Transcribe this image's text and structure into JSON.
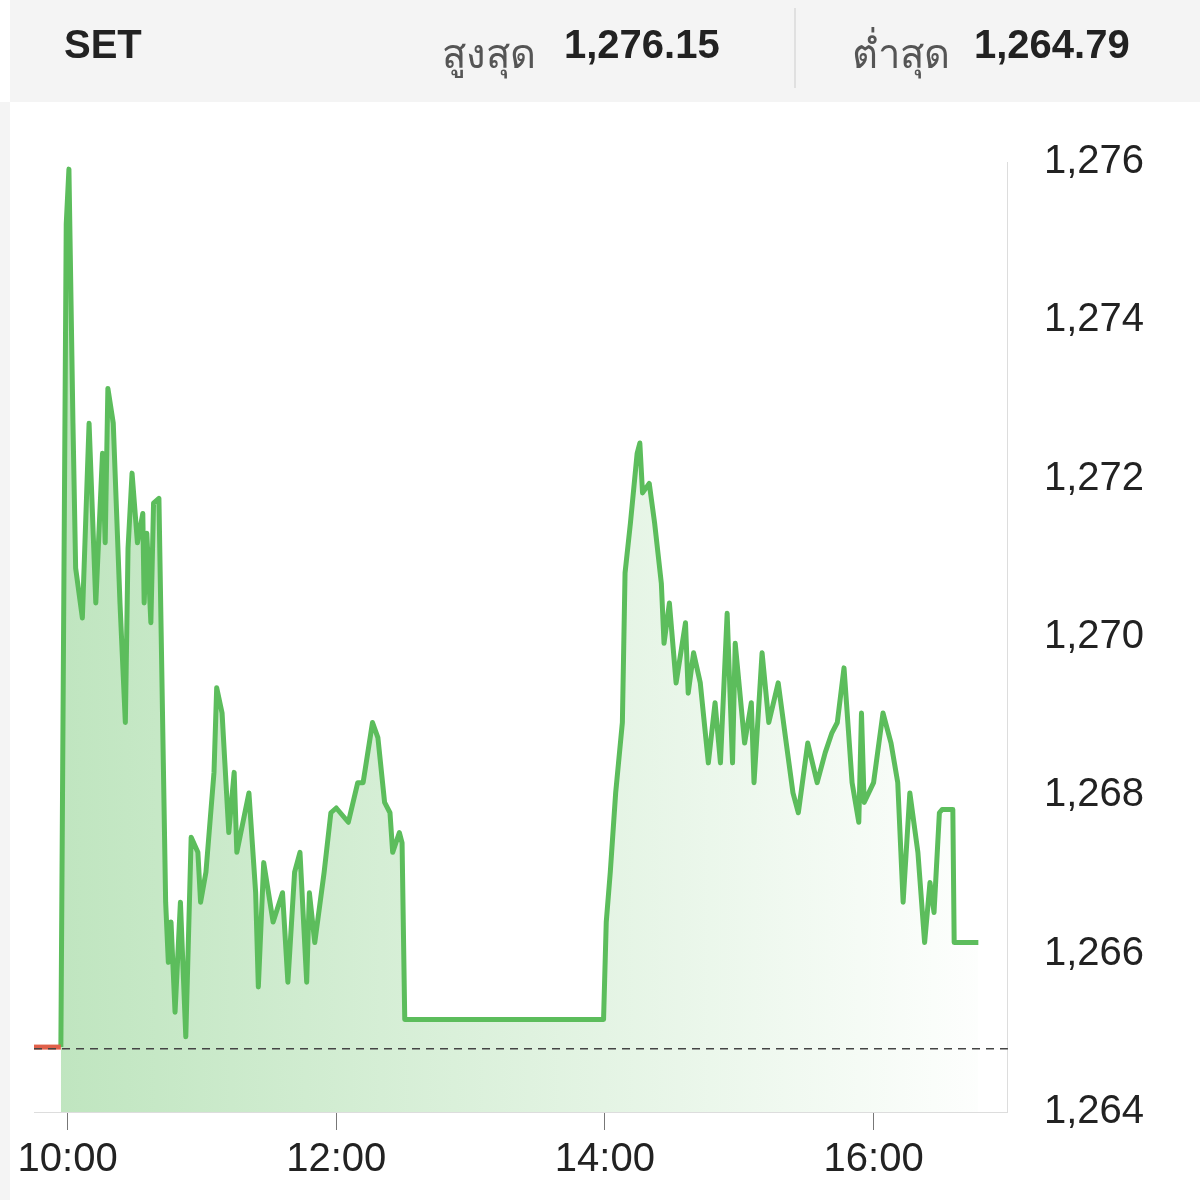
{
  "chart_data": {
    "type": "area",
    "title": "SET",
    "annotations": [
      "สูงสุด",
      "1,276.15",
      "ต่ำสุด",
      "1,264.79"
    ],
    "xlim": [
      9.75,
      17.0
    ],
    "xticks": [
      {
        "value": 10,
        "label": "10:00"
      },
      {
        "value": 12,
        "label": "12:00"
      },
      {
        "value": 14,
        "label": "14:00"
      },
      {
        "value": 16,
        "label": "16:00"
      }
    ],
    "ylim": [
      1264,
      1276
    ],
    "yticks": [
      {
        "value": 1264,
        "label": "1,264"
      },
      {
        "value": 1266,
        "label": "1,266"
      },
      {
        "value": 1268,
        "label": "1,268"
      },
      {
        "value": 1270,
        "label": "1,270"
      },
      {
        "value": 1272,
        "label": "1,272"
      },
      {
        "value": 1274,
        "label": "1,274"
      },
      {
        "value": 1276,
        "label": "1,276"
      }
    ],
    "grid": false,
    "legend": false,
    "marker": "none",
    "ref_lines": [
      {
        "axis": "y",
        "value": 1264.8,
        "color": "#444444",
        "line_style": "dashed"
      }
    ],
    "series": [
      {
        "type": "line",
        "color": "#e0604a",
        "x": [
          9.75,
          9.95
        ],
        "values": [
          1264.82,
          1264.82
        ]
      },
      {
        "color": "#5cbd5c",
        "x": [
          9.95,
          9.99,
          10.01,
          10.04,
          10.06,
          10.11,
          10.16,
          10.21,
          10.26,
          10.28,
          10.3,
          10.34,
          10.39,
          10.43,
          10.45,
          10.48,
          10.52,
          10.56,
          10.57,
          10.59,
          10.62,
          10.64,
          10.68,
          10.73,
          10.75,
          10.77,
          10.8,
          10.84,
          10.88,
          10.92,
          10.97,
          10.99,
          11.03,
          11.09,
          11.11,
          11.15,
          11.2,
          11.24,
          11.26,
          11.35,
          11.4,
          11.42,
          11.46,
          11.53,
          11.6,
          11.64,
          11.69,
          11.73,
          11.78,
          11.8,
          11.84,
          11.91,
          11.96,
          12.0,
          12.09,
          12.16,
          12.2,
          12.27,
          12.31,
          12.36,
          12.4,
          12.42,
          12.47,
          12.49,
          12.51,
          13.99,
          14.01,
          14.04,
          14.08,
          14.13,
          14.15,
          14.19,
          14.24,
          14.26,
          14.28,
          14.33,
          14.37,
          14.42,
          14.44,
          14.48,
          14.53,
          14.6,
          14.62,
          14.66,
          14.71,
          14.77,
          14.82,
          14.86,
          14.91,
          14.95,
          14.97,
          15.04,
          15.09,
          15.11,
          15.17,
          15.22,
          15.29,
          15.35,
          15.4,
          15.44,
          15.51,
          15.58,
          15.64,
          15.69,
          15.73,
          15.78,
          15.84,
          15.89,
          15.91,
          15.93,
          16.0,
          16.07,
          16.13,
          16.18,
          16.22,
          16.27,
          16.33,
          16.38,
          16.42,
          16.45,
          16.49,
          16.51,
          16.59,
          16.6,
          16.78
        ],
        "values": [
          1264.82,
          1275.22,
          1275.91,
          1272.7,
          1270.87,
          1270.24,
          1272.7,
          1270.43,
          1272.32,
          1271.19,
          1273.14,
          1272.7,
          1270.43,
          1268.92,
          1271.12,
          1272.07,
          1271.19,
          1271.56,
          1270.43,
          1271.31,
          1270.18,
          1271.69,
          1271.75,
          1266.65,
          1265.89,
          1266.4,
          1265.26,
          1266.65,
          1264.95,
          1267.47,
          1267.28,
          1266.65,
          1267.03,
          1268.29,
          1269.36,
          1269.04,
          1267.53,
          1268.29,
          1267.28,
          1268.03,
          1266.77,
          1265.58,
          1267.15,
          1266.4,
          1266.77,
          1265.64,
          1267.03,
          1267.28,
          1265.64,
          1266.77,
          1266.14,
          1267.03,
          1267.78,
          1267.84,
          1267.66,
          1268.16,
          1268.16,
          1268.92,
          1268.73,
          1267.91,
          1267.78,
          1267.28,
          1267.53,
          1267.4,
          1265.17,
          1265.17,
          1266.4,
          1267.03,
          1268.03,
          1268.92,
          1270.81,
          1271.44,
          1272.32,
          1272.45,
          1271.82,
          1271.94,
          1271.44,
          1270.68,
          1269.92,
          1270.43,
          1269.42,
          1270.18,
          1269.29,
          1269.8,
          1269.42,
          1268.41,
          1269.17,
          1268.41,
          1270.3,
          1268.41,
          1269.92,
          1268.66,
          1269.17,
          1268.16,
          1269.8,
          1268.92,
          1269.42,
          1268.66,
          1268.03,
          1267.78,
          1268.66,
          1268.16,
          1268.54,
          1268.79,
          1268.92,
          1269.61,
          1268.16,
          1267.66,
          1269.04,
          1267.91,
          1268.16,
          1269.04,
          1268.66,
          1268.16,
          1266.65,
          1268.03,
          1267.28,
          1266.14,
          1266.9,
          1266.52,
          1267.78,
          1267.82,
          1267.82,
          1266.14,
          1266.14
        ]
      }
    ]
  }
}
